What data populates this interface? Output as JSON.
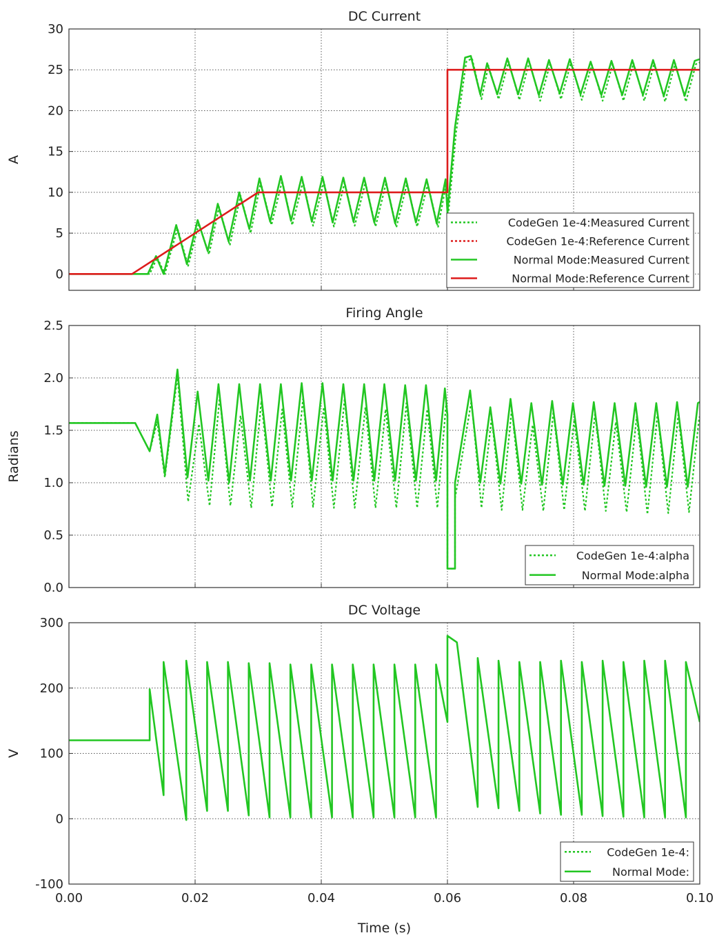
{
  "xlabel": "Time (s)",
  "x_ticks": [
    "0.00",
    "0.02",
    "0.04",
    "0.06",
    "0.08",
    "0.10"
  ],
  "colors": {
    "measured": "#22c622",
    "reference": "#dd1c1c",
    "grid": "#555555"
  },
  "chart_data": [
    {
      "type": "line",
      "title": "DC Current",
      "ylabel": "A",
      "xlim": [
        0,
        0.1
      ],
      "ylim": [
        -2,
        30
      ],
      "y_ticks": [
        "0",
        "5",
        "10",
        "15",
        "20",
        "25",
        "30"
      ],
      "y_tick_values": [
        0,
        5,
        10,
        15,
        20,
        25,
        30
      ],
      "legend_position": "bottom-right",
      "legend": [
        {
          "label": "CodeGen 1e-4:Measured Current",
          "color": "#22c622",
          "style": "dotted"
        },
        {
          "label": "CodeGen 1e-4:Reference Current",
          "color": "#dd1c1c",
          "style": "dotted"
        },
        {
          "label": "Normal Mode:Measured Current",
          "color": "#22c622",
          "style": "solid"
        },
        {
          "label": "Normal Mode:Reference Current",
          "color": "#dd1c1c",
          "style": "solid"
        }
      ],
      "series": [
        {
          "name": "Normal Mode:Measured Current",
          "color": "#22c622",
          "style": "solid",
          "x": [
            0,
            0.0125,
            0.0138,
            0.015,
            0.017,
            0.0187,
            0.0204,
            0.022,
            0.0236,
            0.0253,
            0.027,
            0.0286,
            0.0302,
            0.0319,
            0.0336,
            0.0352,
            0.0369,
            0.0385,
            0.0402,
            0.0418,
            0.0435,
            0.0451,
            0.0468,
            0.0484,
            0.0501,
            0.0517,
            0.0534,
            0.055,
            0.0567,
            0.0583,
            0.0597,
            0.06,
            0.0612,
            0.0628,
            0.0637,
            0.0652,
            0.0663,
            0.0679,
            0.0695,
            0.0712,
            0.0728,
            0.0745,
            0.0761,
            0.0778,
            0.0794,
            0.0811,
            0.0827,
            0.0844,
            0.086,
            0.0877,
            0.0893,
            0.091,
            0.0926,
            0.0943,
            0.0959,
            0.0976,
            0.0992,
            0.1
          ],
          "y": [
            0,
            0,
            2.2,
            0,
            6.0,
            1.2,
            6.6,
            2.8,
            8.6,
            4.0,
            10.0,
            5.5,
            11.7,
            6.4,
            12.0,
            6.5,
            11.9,
            6.4,
            11.9,
            6.3,
            11.8,
            6.4,
            11.8,
            6.3,
            11.8,
            6.2,
            11.7,
            6.3,
            11.6,
            6.2,
            11.6,
            7.5,
            18.0,
            26.5,
            26.7,
            22.0,
            25.8,
            22.0,
            26.4,
            22.0,
            26.4,
            21.9,
            26.2,
            22.1,
            26.3,
            22.0,
            26.0,
            21.9,
            26.1,
            21.9,
            26.2,
            21.9,
            26.2,
            21.8,
            26.2,
            21.8,
            26.1,
            26.3
          ]
        },
        {
          "name": "CodeGen 1e-4:Measured Current",
          "color": "#22c622",
          "style": "dotted",
          "x": [
            0,
            0.0128,
            0.014,
            0.0152,
            0.0172,
            0.0189,
            0.0206,
            0.0222,
            0.0238,
            0.0255,
            0.0272,
            0.0288,
            0.0304,
            0.0321,
            0.0338,
            0.0354,
            0.0371,
            0.0387,
            0.0404,
            0.042,
            0.0437,
            0.0453,
            0.047,
            0.0486,
            0.0503,
            0.0519,
            0.0536,
            0.0552,
            0.0569,
            0.0585,
            0.0598,
            0.0601,
            0.0614,
            0.063,
            0.0639,
            0.0654,
            0.0665,
            0.0681,
            0.0697,
            0.0714,
            0.073,
            0.0747,
            0.0763,
            0.078,
            0.0796,
            0.0813,
            0.0829,
            0.0846,
            0.0862,
            0.0879,
            0.0895,
            0.0912,
            0.0928,
            0.0945,
            0.0961,
            0.0978,
            0.0994,
            0.1
          ],
          "y": [
            0,
            0,
            2.0,
            0,
            5.6,
            1.0,
            6.2,
            2.4,
            8.2,
            3.5,
            9.6,
            5.0,
            11.2,
            6.0,
            11.4,
            6.0,
            11.3,
            5.9,
            11.3,
            5.8,
            11.2,
            5.9,
            11.2,
            5.8,
            11.2,
            5.7,
            11.1,
            5.8,
            11.0,
            5.7,
            11.0,
            7.0,
            17.5,
            26.0,
            26.4,
            21.4,
            25.5,
            21.4,
            26.0,
            21.3,
            26.0,
            21.2,
            25.8,
            21.4,
            25.9,
            21.3,
            25.6,
            21.2,
            25.7,
            21.2,
            25.8,
            21.2,
            25.8,
            21.1,
            25.8,
            21.1,
            25.7,
            25.9
          ]
        },
        {
          "name": "Normal Mode:Reference Current",
          "color": "#dd1c1c",
          "style": "solid",
          "x": [
            0,
            0.01,
            0.03,
            0.06,
            0.06,
            0.1
          ],
          "y": [
            0,
            0,
            10,
            10,
            25,
            25
          ]
        }
      ]
    },
    {
      "type": "line",
      "title": "Firing Angle",
      "ylabel": "Radians",
      "xlim": [
        0,
        0.1
      ],
      "ylim": [
        0,
        2.5
      ],
      "y_ticks": [
        "0.0",
        "0.5",
        "1.0",
        "1.5",
        "2.0",
        "2.5"
      ],
      "y_tick_values": [
        0,
        0.5,
        1.0,
        1.5,
        2.0,
        2.5
      ],
      "legend_position": "bottom-right",
      "legend": [
        {
          "label": "CodeGen 1e-4:alpha",
          "color": "#22c622",
          "style": "dotted"
        },
        {
          "label": "Normal Mode:alpha",
          "color": "#22c622",
          "style": "solid"
        }
      ],
      "series": [
        {
          "name": "Normal Mode:alpha",
          "color": "#22c622",
          "style": "solid",
          "x": [
            0,
            0.0105,
            0.0128,
            0.014,
            0.0152,
            0.0172,
            0.0188,
            0.0204,
            0.0221,
            0.0237,
            0.0254,
            0.027,
            0.0287,
            0.0303,
            0.032,
            0.0336,
            0.0352,
            0.0369,
            0.0385,
            0.0402,
            0.0418,
            0.0435,
            0.0451,
            0.0468,
            0.0484,
            0.05,
            0.0517,
            0.0533,
            0.055,
            0.0566,
            0.0582,
            0.0596,
            0.06,
            0.06,
            0.0612,
            0.0612,
            0.0636,
            0.0652,
            0.0668,
            0.0684,
            0.07,
            0.0717,
            0.0733,
            0.075,
            0.0766,
            0.0783,
            0.0799,
            0.0816,
            0.0832,
            0.0849,
            0.0865,
            0.0882,
            0.0898,
            0.0915,
            0.0931,
            0.0948,
            0.0964,
            0.0981,
            0.0997,
            0.1
          ],
          "y": [
            1.57,
            1.57,
            1.3,
            1.65,
            1.08,
            2.08,
            1.05,
            1.87,
            1.02,
            1.94,
            1.0,
            1.94,
            1.02,
            1.94,
            1.02,
            1.94,
            1.02,
            1.95,
            1.02,
            1.95,
            1.02,
            1.94,
            1.02,
            1.94,
            1.02,
            1.94,
            1.02,
            1.93,
            1.02,
            1.93,
            1.02,
            1.9,
            1.65,
            0.18,
            0.18,
            1.0,
            1.88,
            1.0,
            1.72,
            0.99,
            1.8,
            0.99,
            1.76,
            0.98,
            1.78,
            0.98,
            1.76,
            0.98,
            1.77,
            0.97,
            1.76,
            0.97,
            1.76,
            0.96,
            1.76,
            0.96,
            1.77,
            0.96,
            1.76,
            1.77
          ]
        },
        {
          "name": "CodeGen 1e-4:alpha",
          "color": "#22c622",
          "style": "dotted",
          "x": [
            0,
            0.0105,
            0.0128,
            0.014,
            0.0152,
            0.0172,
            0.0189,
            0.0206,
            0.0223,
            0.0239,
            0.0256,
            0.0272,
            0.0289,
            0.0305,
            0.0322,
            0.0338,
            0.0354,
            0.0371,
            0.0387,
            0.0404,
            0.042,
            0.0437,
            0.0453,
            0.047,
            0.0486,
            0.0502,
            0.0519,
            0.0535,
            0.0552,
            0.0568,
            0.0584,
            0.0598,
            0.06,
            0.06,
            0.0612,
            0.0612,
            0.0638,
            0.0654,
            0.067,
            0.0686,
            0.0702,
            0.0719,
            0.0735,
            0.0752,
            0.0768,
            0.0785,
            0.0801,
            0.0818,
            0.0834,
            0.0851,
            0.0867,
            0.0884,
            0.09,
            0.0917,
            0.0933,
            0.095,
            0.0966,
            0.0983,
            0.0999,
            0.1
          ],
          "y": [
            1.57,
            1.57,
            1.3,
            1.58,
            1.05,
            2.02,
            0.82,
            1.56,
            0.78,
            1.82,
            0.78,
            1.64,
            0.76,
            1.78,
            0.77,
            1.7,
            0.77,
            1.8,
            0.77,
            1.72,
            0.76,
            1.8,
            0.76,
            1.72,
            0.76,
            1.7,
            0.76,
            1.76,
            0.76,
            1.7,
            0.76,
            1.76,
            1.6,
            0.18,
            0.18,
            0.85,
            1.78,
            0.76,
            1.62,
            0.74,
            1.7,
            0.74,
            1.55,
            0.73,
            1.68,
            0.74,
            1.6,
            0.73,
            1.66,
            0.73,
            1.58,
            0.72,
            1.63,
            0.7,
            1.66,
            0.71,
            1.65,
            0.72,
            1.62,
            1.63
          ]
        }
      ]
    },
    {
      "type": "line",
      "title": "DC Voltage",
      "ylabel": "V",
      "xlim": [
        0,
        0.1
      ],
      "ylim": [
        -100,
        300
      ],
      "y_ticks": [
        "-100",
        "0",
        "100",
        "200",
        "300"
      ],
      "y_tick_values": [
        -100,
        0,
        100,
        200,
        300
      ],
      "legend_position": "bottom-right",
      "legend": [
        {
          "label": "CodeGen 1e-4:",
          "color": "#22c622",
          "style": "dotted"
        },
        {
          "label": "Normal Mode:",
          "color": "#22c622",
          "style": "solid"
        }
      ],
      "series": [
        {
          "name": "Normal Mode:",
          "color": "#22c622",
          "style": "solid",
          "x": [
            0,
            0.0128,
            0.0128,
            0.015,
            0.015,
            0.0186,
            0.0186,
            0.0219,
            0.0219,
            0.0252,
            0.0252,
            0.0285,
            0.0285,
            0.0318,
            0.0318,
            0.0351,
            0.0351,
            0.0384,
            0.0384,
            0.0417,
            0.0417,
            0.045,
            0.045,
            0.0483,
            0.0483,
            0.0516,
            0.0516,
            0.0549,
            0.0549,
            0.0582,
            0.0582,
            0.06,
            0.06,
            0.0615,
            0.0648,
            0.0648,
            0.0681,
            0.0681,
            0.0714,
            0.0714,
            0.0747,
            0.0747,
            0.078,
            0.078,
            0.0813,
            0.0813,
            0.0846,
            0.0846,
            0.0879,
            0.0879,
            0.0912,
            0.0912,
            0.0945,
            0.0945,
            0.0978,
            0.0978,
            0.1
          ],
          "y": [
            120,
            120,
            198,
            36,
            240,
            -2,
            242,
            12,
            240,
            12,
            240,
            5,
            238,
            2,
            238,
            2,
            236,
            2,
            236,
            2,
            236,
            2,
            236,
            2,
            236,
            2,
            236,
            2,
            236,
            2,
            236,
            148,
            280,
            270,
            18,
            246,
            16,
            242,
            12,
            240,
            8,
            240,
            6,
            242,
            6,
            240,
            4,
            242,
            3,
            240,
            2,
            242,
            2,
            242,
            2,
            240,
            148
          ]
        }
      ]
    }
  ]
}
